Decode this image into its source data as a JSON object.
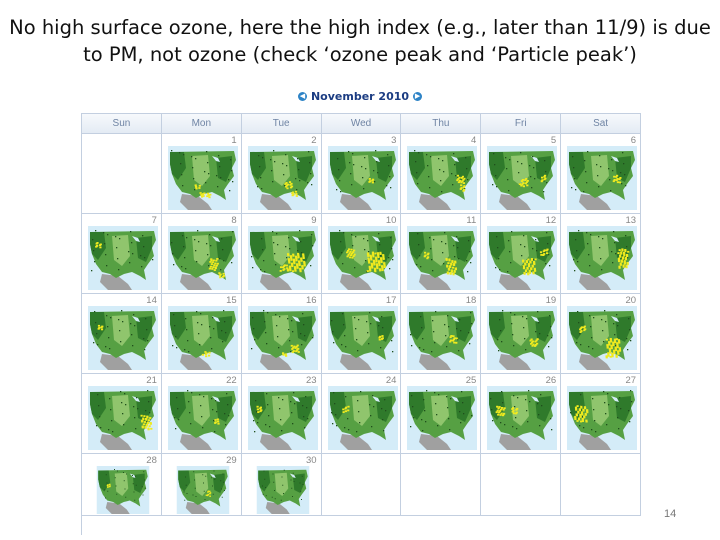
{
  "slide": {
    "title_line1": "No high surface ozone, here the high index (e.g., later than 11/9) is due",
    "title_line2": "to PM, not ozone (check ‘ozone peak and ‘Particle peak’)",
    "page_number": "14"
  },
  "calendar": {
    "month_title": "November 2010",
    "nav_prev_icon": "chevron-left-icon",
    "nav_next_icon": "chevron-right-icon",
    "weekdays": [
      "Sun",
      "Mon",
      "Tue",
      "Wed",
      "Thu",
      "Fri",
      "Sat"
    ],
    "start_weekday": 1,
    "days": [
      {
        "day": "1",
        "yellow": [
          [
            0.45,
            0.72,
            0.18,
            0.07
          ],
          [
            0.38,
            0.6,
            0.1,
            0.06
          ]
        ]
      },
      {
        "day": "2",
        "yellow": [
          [
            0.5,
            0.55,
            0.12,
            0.1
          ],
          [
            0.6,
            0.7,
            0.1,
            0.08
          ]
        ]
      },
      {
        "day": "3",
        "yellow": [
          [
            0.55,
            0.5,
            0.08,
            0.08
          ]
        ]
      },
      {
        "day": "4",
        "yellow": [
          [
            0.7,
            0.45,
            0.12,
            0.12
          ],
          [
            0.75,
            0.6,
            0.08,
            0.1
          ]
        ]
      },
      {
        "day": "5",
        "yellow": [
          [
            0.45,
            0.5,
            0.12,
            0.12
          ],
          [
            0.75,
            0.45,
            0.08,
            0.1
          ]
        ]
      },
      {
        "day": "6",
        "yellow": [
          [
            0.65,
            0.45,
            0.1,
            0.12
          ]
        ]
      },
      {
        "day": "7",
        "yellow": [
          [
            0.1,
            0.25,
            0.1,
            0.08
          ]
        ]
      },
      {
        "day": "8",
        "yellow": [
          [
            0.58,
            0.5,
            0.12,
            0.18
          ],
          [
            0.7,
            0.72,
            0.1,
            0.08
          ]
        ]
      },
      {
        "day": "9",
        "yellow": [
          [
            0.55,
            0.42,
            0.25,
            0.28
          ],
          [
            0.45,
            0.6,
            0.1,
            0.1
          ]
        ]
      },
      {
        "day": "10",
        "yellow": [
          [
            0.25,
            0.35,
            0.12,
            0.15
          ],
          [
            0.55,
            0.4,
            0.25,
            0.3
          ]
        ]
      },
      {
        "day": "11",
        "yellow": [
          [
            0.55,
            0.5,
            0.14,
            0.25
          ],
          [
            0.22,
            0.4,
            0.08,
            0.1
          ]
        ]
      },
      {
        "day": "12",
        "yellow": [
          [
            0.5,
            0.5,
            0.18,
            0.25
          ],
          [
            0.75,
            0.35,
            0.1,
            0.1
          ]
        ]
      },
      {
        "day": "13",
        "yellow": [
          [
            0.72,
            0.35,
            0.14,
            0.3
          ]
        ]
      },
      {
        "day": "14",
        "yellow": [
          [
            0.12,
            0.28,
            0.08,
            0.08
          ]
        ]
      },
      {
        "day": "15",
        "yellow": [
          [
            0.48,
            0.7,
            0.1,
            0.08
          ]
        ]
      },
      {
        "day": "16",
        "yellow": [
          [
            0.6,
            0.6,
            0.12,
            0.12
          ],
          [
            0.48,
            0.72,
            0.08,
            0.06
          ]
        ]
      },
      {
        "day": "17",
        "yellow": [
          [
            0.7,
            0.45,
            0.08,
            0.08
          ]
        ]
      },
      {
        "day": "18",
        "yellow": [
          [
            0.6,
            0.45,
            0.1,
            0.12
          ]
        ]
      },
      {
        "day": "19",
        "yellow": [
          [
            0.6,
            0.5,
            0.12,
            0.12
          ]
        ]
      },
      {
        "day": "20",
        "yellow": [
          [
            0.55,
            0.5,
            0.2,
            0.3
          ],
          [
            0.15,
            0.3,
            0.1,
            0.1
          ]
        ]
      },
      {
        "day": "21",
        "yellow": [
          [
            0.75,
            0.45,
            0.14,
            0.22
          ]
        ]
      },
      {
        "day": "22",
        "yellow": [
          [
            0.65,
            0.5,
            0.08,
            0.08
          ]
        ]
      },
      {
        "day": "23",
        "yellow": [
          [
            0.1,
            0.3,
            0.08,
            0.1
          ]
        ]
      },
      {
        "day": "24",
        "yellow": [
          [
            0.2,
            0.3,
            0.08,
            0.1
          ]
        ]
      },
      {
        "day": "25",
        "yellow": []
      },
      {
        "day": "26",
        "yellow": [
          [
            0.12,
            0.3,
            0.12,
            0.15
          ],
          [
            0.32,
            0.32,
            0.1,
            0.1
          ]
        ]
      },
      {
        "day": "27",
        "yellow": [
          [
            0.1,
            0.3,
            0.18,
            0.25
          ]
        ]
      },
      {
        "day": "28",
        "yellow": [
          [
            0.18,
            0.35,
            0.08,
            0.08
          ]
        ]
      },
      {
        "day": "29",
        "yellow": [
          [
            0.55,
            0.5,
            0.08,
            0.12
          ]
        ]
      },
      {
        "day": "30",
        "yellow": []
      }
    ],
    "colors": {
      "ocean": "#d4ecf8",
      "land_dark": "#2f7a2b",
      "land_mid": "#56a043",
      "land_light": "#90c56d",
      "mexico": "#a0a0a0",
      "hotspot": "#f0ea1e"
    }
  }
}
